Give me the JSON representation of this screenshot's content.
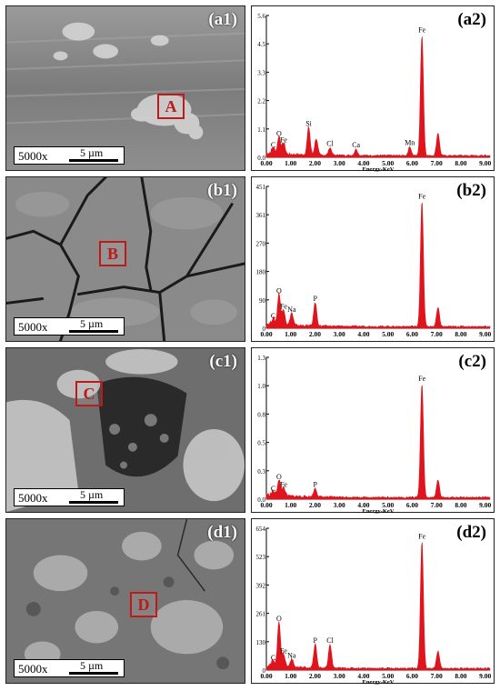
{
  "figure_title": "",
  "colors": {
    "spectrum": "#e0141c",
    "box": "#c21818"
  },
  "sem_panels": [
    {
      "label": "(a1)",
      "region": "A",
      "magnification": "5000x",
      "scale": "5 µm"
    },
    {
      "label": "(b1)",
      "region": "B",
      "magnification": "5000x",
      "scale": "5 µm"
    },
    {
      "label": "(c1)",
      "region": "C",
      "magnification": "5000x",
      "scale": "5 µm"
    },
    {
      "label": "(d1)",
      "region": "D",
      "magnification": "5000x",
      "scale": "5 µm"
    }
  ],
  "chart_data": [
    {
      "type": "line",
      "label": "(a2)",
      "xlabel": "Energy-KeV",
      "xlim": [
        0,
        9.2
      ],
      "ylim": [
        0,
        5.6
      ],
      "xticks": [
        "0.00",
        "1.00",
        "2.00",
        "3.00",
        "4.00",
        "5.00",
        "6.00",
        "7.00",
        "8.00",
        "9.00"
      ],
      "yticks": [
        "0.0",
        "1.1",
        "2.2",
        "3.3",
        "4.5",
        "5.6"
      ],
      "peaks": [
        {
          "element": "C",
          "energy": 0.28,
          "height": 0.25
        },
        {
          "element": "O",
          "energy": 0.52,
          "height": 0.7
        },
        {
          "element": "Fe",
          "energy": 0.71,
          "height": 0.45
        },
        {
          "element": "Si",
          "energy": 1.74,
          "height": 1.1
        },
        {
          "element": "",
          "energy": 2.05,
          "height": 0.65
        },
        {
          "element": "Cl",
          "energy": 2.62,
          "height": 0.3
        },
        {
          "element": "Ca",
          "energy": 3.69,
          "height": 0.25
        },
        {
          "element": "Mn",
          "energy": 5.9,
          "height": 0.35
        },
        {
          "element": "Fe",
          "energy": 6.4,
          "height": 4.8
        },
        {
          "element": "",
          "energy": 7.06,
          "height": 0.9
        }
      ]
    },
    {
      "type": "line",
      "label": "(b2)",
      "xlabel": "",
      "xlim": [
        0,
        9.2
      ],
      "ylim": [
        0,
        451
      ],
      "xticks": [
        "0.00",
        "1.00",
        "2.00",
        "3.00",
        "4.00",
        "5.00",
        "6.00",
        "7.00",
        "8.00",
        "9.00"
      ],
      "yticks": [
        "0",
        "90",
        "180",
        "270",
        "361",
        "451"
      ],
      "peaks": [
        {
          "element": "C",
          "energy": 0.28,
          "height": 20
        },
        {
          "element": "O",
          "energy": 0.52,
          "height": 100
        },
        {
          "element": "Fe",
          "energy": 0.71,
          "height": 50
        },
        {
          "element": "Na",
          "energy": 1.04,
          "height": 40
        },
        {
          "element": "P",
          "energy": 2.01,
          "height": 75
        },
        {
          "element": "Fe",
          "energy": 6.4,
          "height": 400
        },
        {
          "element": "",
          "energy": 7.06,
          "height": 60
        }
      ]
    },
    {
      "type": "line",
      "label": "(c2)",
      "xlabel": "Energy-KeV",
      "xlim": [
        0,
        9.2
      ],
      "ylim": [
        0,
        1.3
      ],
      "xticks": [
        "0.00",
        "1.00",
        "2.00",
        "3.00",
        "4.00",
        "5.00",
        "6.00",
        "7.00",
        "8.00",
        "9.00"
      ],
      "yticks": [
        "0.0",
        "0.3",
        "0.5",
        "0.8",
        "1.0",
        "1.3"
      ],
      "peaks": [
        {
          "element": "C",
          "energy": 0.28,
          "height": 0.04
        },
        {
          "element": "O",
          "energy": 0.52,
          "height": 0.15
        },
        {
          "element": "Fe",
          "energy": 0.71,
          "height": 0.08
        },
        {
          "element": "P",
          "energy": 2.01,
          "height": 0.08
        },
        {
          "element": "Fe",
          "energy": 6.4,
          "height": 1.05
        },
        {
          "element": "",
          "energy": 7.06,
          "height": 0.16
        }
      ]
    },
    {
      "type": "line",
      "label": "(d2)",
      "xlabel": "Energy-KeV",
      "xlim": [
        0,
        9.2
      ],
      "ylim": [
        0,
        654
      ],
      "xticks": [
        "0.00",
        "1.00",
        "2.00",
        "3.00",
        "4.00",
        "5.00",
        "6.00",
        "7.00",
        "8.00",
        "9.00"
      ],
      "yticks": [
        "0",
        "130",
        "261",
        "392",
        "523",
        "654"
      ],
      "peaks": [
        {
          "element": "C",
          "energy": 0.28,
          "height": 30
        },
        {
          "element": "O",
          "energy": 0.52,
          "height": 210
        },
        {
          "element": "Fe",
          "energy": 0.71,
          "height": 60
        },
        {
          "element": "Na",
          "energy": 1.04,
          "height": 40
        },
        {
          "element": "P",
          "energy": 2.01,
          "height": 110
        },
        {
          "element": "Cl",
          "energy": 2.62,
          "height": 110
        },
        {
          "element": "Fe",
          "energy": 6.4,
          "height": 590
        },
        {
          "element": "",
          "energy": 7.06,
          "height": 80
        }
      ]
    }
  ]
}
